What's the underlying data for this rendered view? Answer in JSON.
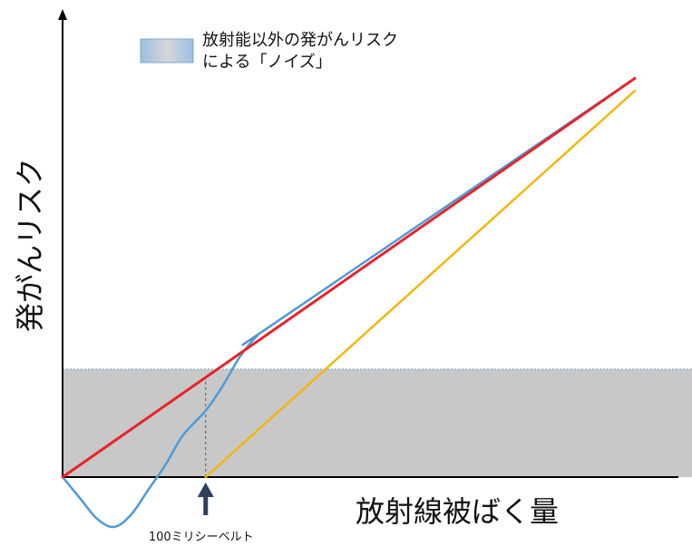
{
  "chart_data": {
    "type": "line",
    "title": "",
    "xlabel": "放射線被ばく量",
    "ylabel": "発がんリスク",
    "xlim": [
      0,
      1
    ],
    "ylim": [
      -0.15,
      1
    ],
    "grid": false,
    "legend": {
      "position": "top",
      "label_lines": [
        "放射能以外の発がんリスク",
        "による「ノイズ」"
      ]
    },
    "noise_band": {
      "y_from": 0,
      "y_to": 0.26,
      "color": "#c8c8c8"
    },
    "threshold_marker": {
      "x": 0.25,
      "label": "100ミリシーベルト"
    },
    "series": [
      {
        "color": "#e8232a",
        "points": [
          [
            0,
            0
          ],
          [
            1,
            0.96
          ]
        ]
      },
      {
        "color": "#f2b70f",
        "points": [
          [
            0.25,
            0
          ],
          [
            1,
            0.93
          ]
        ]
      },
      {
        "color": "#4d9bd6",
        "points": [
          [
            0,
            0
          ],
          [
            0.03,
            -0.05
          ],
          [
            0.06,
            -0.1
          ],
          [
            0.09,
            -0.12
          ],
          [
            0.12,
            -0.09
          ],
          [
            0.15,
            -0.03
          ],
          [
            0.18,
            0.03
          ],
          [
            0.21,
            0.1
          ],
          [
            0.25,
            0.16
          ],
          [
            0.28,
            0.22
          ],
          [
            0.31,
            0.29
          ],
          [
            0.34,
            0.34
          ],
          [
            0.37,
            0.37
          ],
          [
            1,
            0.96
          ]
        ]
      }
    ]
  }
}
